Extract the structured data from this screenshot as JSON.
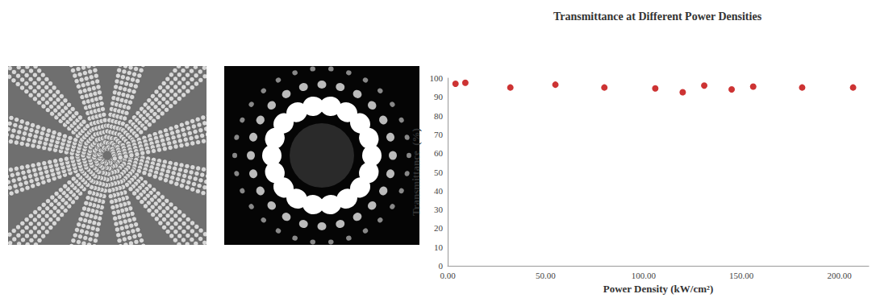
{
  "chart_data": {
    "type": "scatter",
    "title": "Transmittance at Different Power Densities",
    "x_label": "Power Density (kW/cm²)",
    "y_label": "Transmittance  (%)",
    "x": [
      4,
      9,
      32,
      55,
      80,
      106,
      120,
      131,
      145,
      156,
      181,
      207
    ],
    "values": [
      97,
      97.5,
      95,
      96.5,
      95,
      94.5,
      92.5,
      96,
      94,
      95.5,
      95,
      95
    ],
    "color": "#c00000",
    "marker": "circle",
    "xlim": [
      0,
      215
    ],
    "xticks": [
      {
        "value": 0,
        "label": "0.00"
      },
      {
        "value": 50,
        "label": "50.00"
      },
      {
        "value": 100,
        "label": "100.00"
      },
      {
        "value": 150,
        "label": "150.00"
      },
      {
        "value": 200,
        "label": "200.00"
      }
    ],
    "ylim": [
      0,
      100
    ],
    "yticks": [
      0,
      10,
      20,
      30,
      40,
      50,
      60,
      70,
      80,
      90,
      100
    ],
    "grid": false
  }
}
